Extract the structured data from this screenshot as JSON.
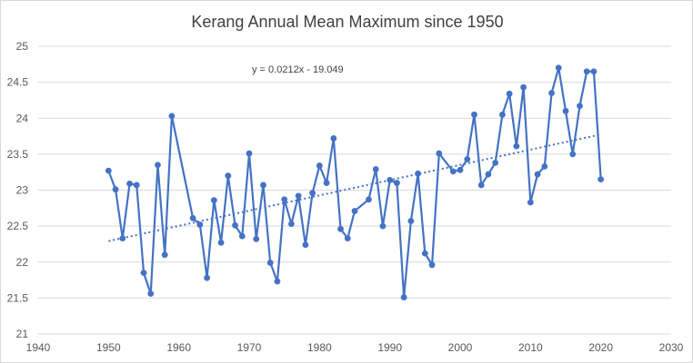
{
  "chart_data": {
    "type": "line",
    "title": "Kerang Annual Mean Maximum since 1950",
    "xlabel": "",
    "ylabel": "",
    "xlim": [
      1940,
      2030
    ],
    "ylim": [
      21,
      25
    ],
    "x_ticks": [
      1940,
      1950,
      1960,
      1970,
      1980,
      1990,
      2000,
      2010,
      2020,
      2030
    ],
    "y_ticks": [
      21,
      21.5,
      22,
      22.5,
      23,
      23.5,
      24,
      24.5,
      25
    ],
    "grid": "horizontal",
    "legend": "none",
    "series_color": "#4472c4",
    "trendline": {
      "equation_label": "y = 0.0212x - 19.049",
      "slope": 0.0212,
      "intercept": -19.049,
      "x_range": [
        1950,
        2020
      ],
      "style": "dotted"
    },
    "series": [
      {
        "x": [
          1950,
          1951,
          1952,
          1953,
          1954,
          1955,
          1956,
          1957,
          1958,
          1959,
          1962,
          1963,
          1964,
          1965,
          1966,
          1967,
          1968,
          1969,
          1970,
          1971,
          1972,
          1973,
          1974,
          1975,
          1976,
          1977,
          1978,
          1979,
          1980,
          1981,
          1982,
          1983,
          1984,
          1985,
          1987,
          1988,
          1989,
          1990,
          1991,
          1992,
          1993,
          1994,
          1995,
          1996,
          1997,
          1999,
          2000,
          2001,
          2002,
          2003,
          2004,
          2005,
          2006,
          2007,
          2008,
          2009,
          2010,
          2011,
          2012,
          2013,
          2014,
          2015,
          2016,
          2017,
          2018,
          2019,
          2020
        ],
        "values": [
          23.27,
          23.01,
          22.33,
          23.09,
          23.07,
          21.85,
          21.56,
          23.35,
          22.1,
          24.03,
          22.61,
          22.52,
          21.78,
          22.86,
          22.27,
          23.2,
          22.51,
          22.36,
          23.51,
          22.32,
          23.07,
          21.99,
          21.73,
          22.87,
          22.53,
          22.92,
          22.24,
          22.96,
          23.34,
          23.1,
          23.72,
          22.46,
          22.33,
          22.71,
          22.87,
          23.29,
          22.5,
          23.14,
          23.1,
          21.51,
          22.57,
          23.23,
          22.12,
          21.96,
          23.51,
          23.26,
          23.28,
          23.43,
          24.05,
          23.07,
          23.22,
          23.38,
          24.05,
          24.34,
          23.61,
          24.43,
          22.83,
          23.22,
          23.33,
          24.35,
          24.7,
          24.1,
          23.5,
          24.17,
          24.65,
          24.65,
          23.15
        ]
      }
    ]
  }
}
